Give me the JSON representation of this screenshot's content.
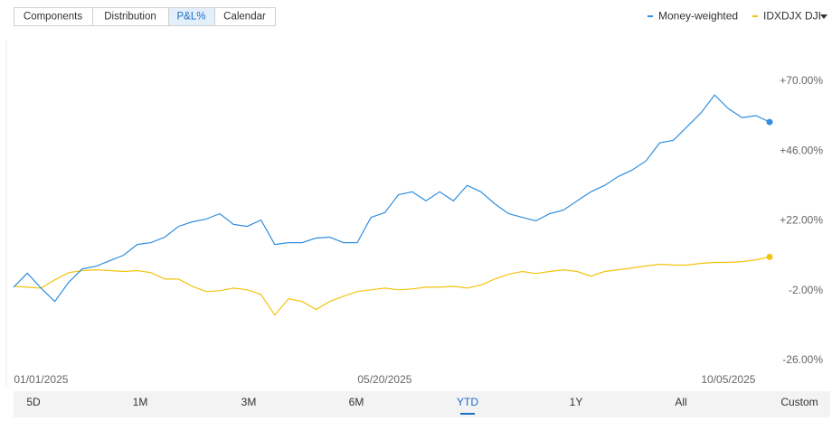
{
  "tabs": {
    "items": [
      "Components",
      "Distribution",
      "P&L%",
      "Calendar"
    ],
    "active": 2
  },
  "ranges": {
    "items": [
      "5D",
      "1M",
      "3M",
      "6M",
      "YTD",
      "1Y",
      "All",
      "Custom"
    ],
    "active": 4
  },
  "chart_data": {
    "type": "line",
    "categories": [
      null,
      null,
      "01/01/2025",
      null,
      null,
      null,
      null,
      null,
      null,
      null,
      null,
      null,
      null,
      null,
      null,
      null,
      null,
      null,
      null,
      null,
      null,
      null,
      null,
      null,
      null,
      null,
      null,
      "05/20/2025",
      null,
      null,
      null,
      null,
      null,
      null,
      null,
      null,
      null,
      null,
      null,
      null,
      null,
      null,
      null,
      null,
      null,
      null,
      null,
      null,
      null,
      null,
      null,
      null,
      "10/05/2025",
      null,
      null,
      null
    ],
    "series": [
      {
        "name": "Money-weighted",
        "color": "#2f8fe0",
        "values": [
          -0.8,
          4.0,
          -1.1,
          -5.7,
          0.8,
          5.5,
          6.4,
          8.3,
          10.2,
          13.9,
          14.5,
          16.4,
          20.1,
          21.7,
          22.6,
          24.5,
          20.8,
          20.1,
          22.3,
          13.9,
          14.5,
          14.5,
          16.1,
          16.4,
          14.5,
          14.5,
          23.2,
          24.8,
          31.0,
          32.0,
          28.9,
          32.0,
          28.9,
          34.2,
          32.0,
          27.9,
          24.5,
          23.2,
          22.0,
          24.5,
          25.7,
          28.9,
          32.0,
          34.2,
          37.3,
          39.5,
          42.6,
          48.8,
          49.7,
          54.4,
          59.1,
          65.3,
          60.6,
          57.5,
          58.2,
          56.0
        ]
      },
      {
        "name": "IDXDJX DJI",
        "color": "#f2c40f",
        "values": [
          -0.5,
          -0.8,
          -1.1,
          1.7,
          4.2,
          4.9,
          5.2,
          4.9,
          4.6,
          4.9,
          4.2,
          2.0,
          2.0,
          -0.5,
          -2.3,
          -2.0,
          -1.1,
          -1.7,
          -3.3,
          -10.4,
          -4.8,
          -5.7,
          -8.5,
          -5.7,
          -3.9,
          -2.3,
          -1.7,
          -1.1,
          -1.7,
          -1.4,
          -0.8,
          -0.8,
          -0.5,
          -1.1,
          -0.1,
          2.0,
          3.6,
          4.6,
          3.9,
          4.6,
          5.2,
          4.6,
          3.0,
          4.6,
          5.2,
          5.8,
          6.5,
          7.1,
          6.8,
          6.8,
          7.4,
          7.7,
          7.7,
          8.0,
          8.6,
          9.6
        ]
      }
    ],
    "ylim": [
      -26,
      70
    ],
    "yticks": [
      {
        "value": 70,
        "label": "+70.00%"
      },
      {
        "value": 46,
        "label": "+46.00%"
      },
      {
        "value": 22,
        "label": "+22.00%"
      },
      {
        "value": -2,
        "label": "-2.00%"
      },
      {
        "value": -26,
        "label": "-26.00%"
      }
    ],
    "grid": false
  }
}
